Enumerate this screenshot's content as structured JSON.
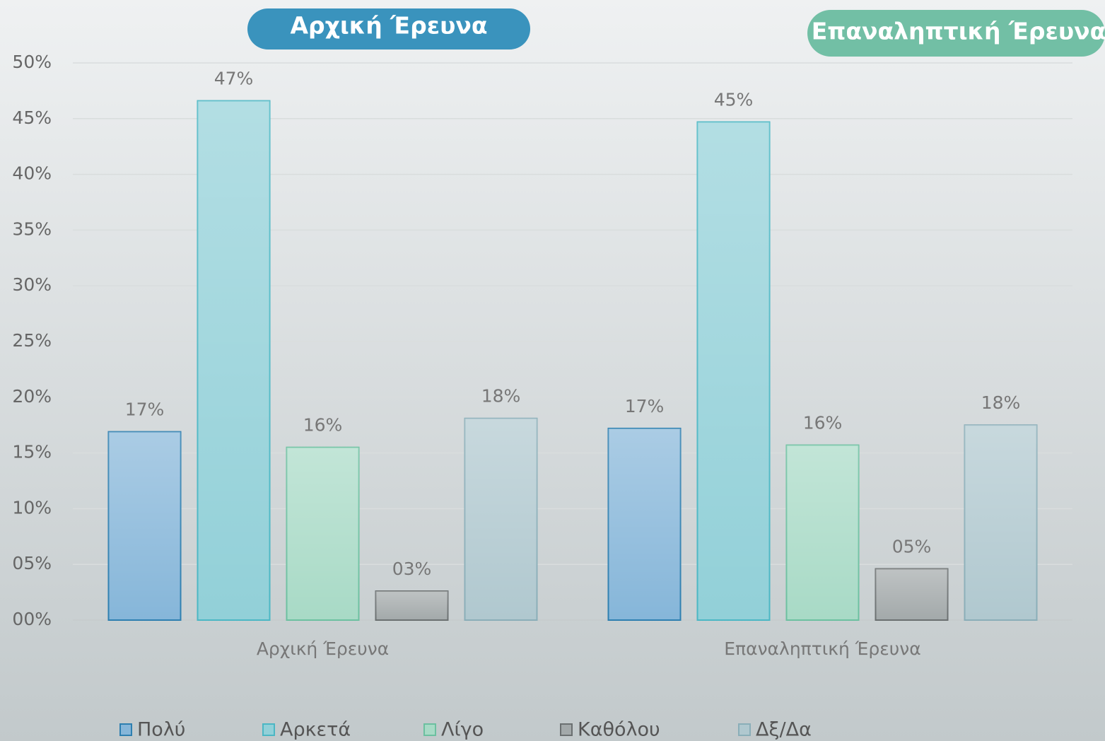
{
  "chart_data": {
    "type": "bar",
    "annotations": [
      {
        "text": "Αρχική Έρευνα",
        "color": "#3a93bd"
      },
      {
        "text": "Επαναληπτική Έρευνα",
        "color": "#72bfa5"
      }
    ],
    "categories": [
      "Αρχική Έρευνα",
      "Επαναληπτική Έρευνα"
    ],
    "series": [
      {
        "name": "Πολύ",
        "color": "#86b6d9",
        "values": [
          16.9,
          17.2
        ],
        "value_labels": [
          "17%",
          "17%"
        ]
      },
      {
        "name": "Αρκετά",
        "color": "#92d0d8",
        "values": [
          46.6,
          44.7
        ],
        "value_labels": [
          "47%",
          "45%"
        ]
      },
      {
        "name": "Λίγο",
        "color": "#a8dac6",
        "values": [
          15.5,
          15.7
        ],
        "value_labels": [
          "16%",
          "16%"
        ]
      },
      {
        "name": "Καθόλου",
        "color": "#a3a9aa",
        "values": [
          2.6,
          4.6
        ],
        "value_labels": [
          "03%",
          "05%"
        ]
      },
      {
        "name": "Δξ/Δα",
        "color": "#b0c8cf",
        "values": [
          18.1,
          17.5
        ],
        "value_labels": [
          "18%",
          "18%"
        ]
      }
    ],
    "ylim": [
      0,
      50
    ],
    "yticks": [
      {
        "value": 0,
        "label": "00%"
      },
      {
        "value": 5,
        "label": "05%"
      },
      {
        "value": 10,
        "label": "10%"
      },
      {
        "value": 15,
        "label": "15%"
      },
      {
        "value": 20,
        "label": "20%"
      },
      {
        "value": 25,
        "label": "25%"
      },
      {
        "value": 30,
        "label": "30%"
      },
      {
        "value": 35,
        "label": "35%"
      },
      {
        "value": 40,
        "label": "40%"
      },
      {
        "value": 45,
        "label": "45%"
      },
      {
        "value": 50,
        "label": "50%"
      }
    ],
    "grid": true
  }
}
